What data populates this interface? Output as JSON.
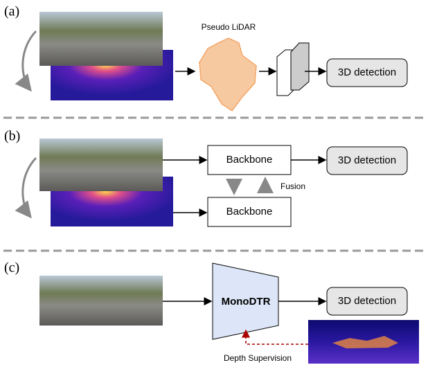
{
  "panels": [
    {
      "label": "(a)",
      "annotation": "Pseudo LiDAR",
      "output": "3D detection"
    },
    {
      "label": "(b)",
      "backbones": [
        "Backbone",
        "Backbone"
      ],
      "annotation": "Fusion",
      "output": "3D detection"
    },
    {
      "label": "(c)",
      "model": "MonoDTR",
      "annotation": "Depth Supervision",
      "output": "3D detection"
    }
  ]
}
